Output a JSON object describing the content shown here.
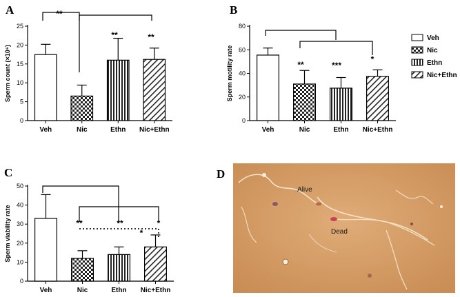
{
  "legend": {
    "entries": [
      {
        "label": "Veh",
        "pattern": "plain"
      },
      {
        "label": "Nic",
        "pattern": "checker"
      },
      {
        "label": "Ethn",
        "pattern": "vstripe"
      },
      {
        "label": "Nic+Ethn",
        "pattern": "diag"
      }
    ]
  },
  "chart_data": [
    {
      "panel": "A",
      "type": "bar",
      "categories": [
        "Veh",
        "Nic",
        "Ethn",
        "Nic+Ethn"
      ],
      "values": [
        17.5,
        6.5,
        16,
        16.2
      ],
      "errors": [
        2.7,
        2.9,
        5.8,
        3.0
      ],
      "ylabel": "Sperm count (×10⁶)",
      "ylim": [
        0,
        25
      ],
      "yticks": [
        "0",
        "5",
        "10",
        "15",
        "20",
        "25"
      ],
      "annotations": [
        "**",
        "**",
        "**"
      ]
    },
    {
      "panel": "B",
      "type": "bar",
      "categories": [
        "Veh",
        "Nic",
        "Ethn",
        "Nic+Ethn"
      ],
      "values": [
        55.5,
        31,
        27.5,
        37.5
      ],
      "errors": [
        6.0,
        11.5,
        9.0,
        5.5
      ],
      "ylabel": "Sperm motility rate",
      "ylim": [
        0,
        80
      ],
      "yticks": [
        "0",
        "20",
        "40",
        "60",
        "80"
      ],
      "annotations": [
        "**",
        "***",
        "*"
      ]
    },
    {
      "panel": "C",
      "type": "bar",
      "categories": [
        "Veh",
        "Nic",
        "Ethn",
        "Nic+Ethn"
      ],
      "values": [
        33,
        12,
        14,
        18
      ],
      "errors": [
        12.5,
        4.0,
        4.0,
        6.3
      ],
      "ylabel": "Sperm viability rate",
      "ylim": [
        0,
        50
      ],
      "yticks": [
        "0",
        "10",
        "20",
        "30",
        "40",
        "50"
      ],
      "annotations": [
        "**",
        "**",
        "*",
        "*"
      ]
    }
  ],
  "micrograph": {
    "panel": "D",
    "labels": [
      "Alive",
      "Dead"
    ],
    "bg_color": "#d49a63"
  }
}
